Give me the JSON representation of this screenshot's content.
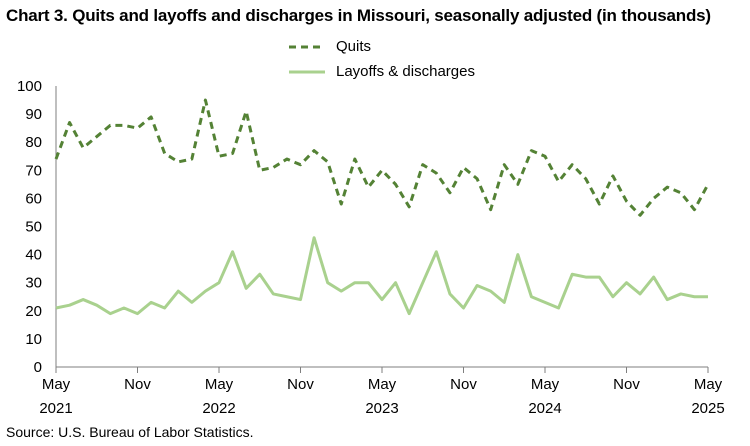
{
  "chart_data": {
    "type": "line",
    "title": "Chart 3. Quits and layoffs and discharges in Missouri, seasonally adjusted (in thousands)",
    "source": "Source: U.S. Bureau of Labor Statistics.",
    "ylim": [
      0,
      100
    ],
    "yticks": [
      "0",
      "10",
      "20",
      "30",
      "40",
      "50",
      "60",
      "70",
      "80",
      "90",
      "100"
    ],
    "xticks": [
      {
        "index": 0,
        "month": "May",
        "year": "2021"
      },
      {
        "index": 6,
        "month": "Nov",
        "year": ""
      },
      {
        "index": 12,
        "month": "May",
        "year": "2022"
      },
      {
        "index": 18,
        "month": "Nov",
        "year": ""
      },
      {
        "index": 24,
        "month": "May",
        "year": "2023"
      },
      {
        "index": 30,
        "month": "Nov",
        "year": ""
      },
      {
        "index": 36,
        "month": "May",
        "year": "2024"
      },
      {
        "index": 42,
        "month": "Nov",
        "year": ""
      },
      {
        "index": 48,
        "month": "May",
        "year": "2025"
      }
    ],
    "legend_position": "top-center",
    "series": [
      {
        "name": "Quits",
        "color": "#548235",
        "style": "dashed",
        "values": [
          74,
          87,
          78,
          82,
          86,
          86,
          85,
          89,
          76,
          73,
          74,
          95,
          75,
          76,
          91,
          70,
          71,
          74,
          72,
          77,
          73,
          58,
          74,
          64,
          70,
          65,
          57,
          72,
          69,
          62,
          71,
          67,
          56,
          72,
          65,
          77,
          75,
          66,
          72,
          67,
          58,
          68,
          59,
          54,
          60,
          64,
          62,
          56,
          65
        ]
      },
      {
        "name": "Layoffs & discharges",
        "color": "#a9d18e",
        "style": "solid",
        "values": [
          21,
          22,
          24,
          22,
          19,
          21,
          19,
          23,
          21,
          27,
          23,
          27,
          30,
          41,
          28,
          33,
          26,
          25,
          24,
          46,
          30,
          27,
          30,
          30,
          24,
          30,
          19,
          30,
          41,
          26,
          21,
          29,
          27,
          23,
          40,
          25,
          23,
          21,
          33,
          32,
          32,
          25,
          30,
          26,
          32,
          24,
          26,
          25,
          25
        ]
      }
    ]
  }
}
